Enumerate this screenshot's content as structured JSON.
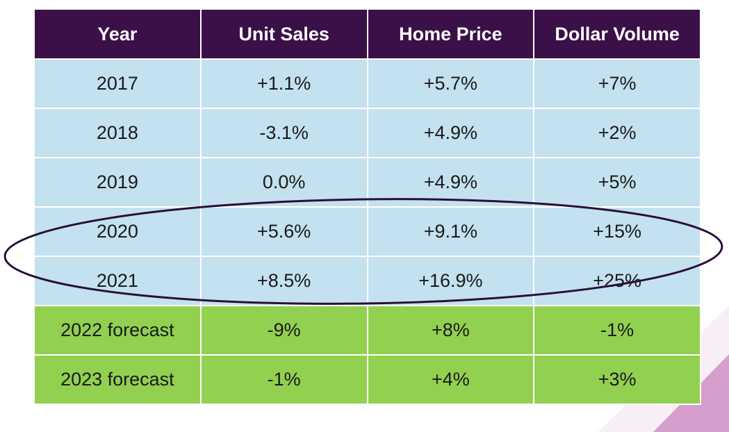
{
  "chart_data": {
    "type": "table",
    "columns": [
      "Year",
      "Unit Sales",
      "Home Price",
      "Dollar Volume"
    ],
    "rows": [
      {
        "year": "2017",
        "unit_sales": "+1.1%",
        "home_price": "+5.7%",
        "dollar_volume": "+7%",
        "kind": "actual"
      },
      {
        "year": "2018",
        "unit_sales": "-3.1%",
        "home_price": "+4.9%",
        "dollar_volume": "+2%",
        "kind": "actual"
      },
      {
        "year": "2019",
        "unit_sales": "0.0%",
        "home_price": "+4.9%",
        "dollar_volume": "+5%",
        "kind": "actual"
      },
      {
        "year": "2020",
        "unit_sales": "+5.6%",
        "home_price": "+9.1%",
        "dollar_volume": "+15%",
        "kind": "actual"
      },
      {
        "year": "2021",
        "unit_sales": "+8.5%",
        "home_price": "+16.9%",
        "dollar_volume": "+25%",
        "kind": "actual"
      },
      {
        "year": "2022 forecast",
        "unit_sales": "-9%",
        "home_price": "+8%",
        "dollar_volume": "-1%",
        "kind": "forecast"
      },
      {
        "year": "2023 forecast",
        "unit_sales": "-1%",
        "home_price": "+4%",
        "dollar_volume": "+3%",
        "kind": "forecast"
      }
    ],
    "highlighted_rows": [
      "2020",
      "2021"
    ]
  },
  "colors": {
    "header_bg": "#3b1048",
    "actual_bg": "#c3e1ee",
    "forecast_bg": "#92d050",
    "ellipse_stroke": "#2a0d3a",
    "corner_accent": "#a8389a"
  }
}
